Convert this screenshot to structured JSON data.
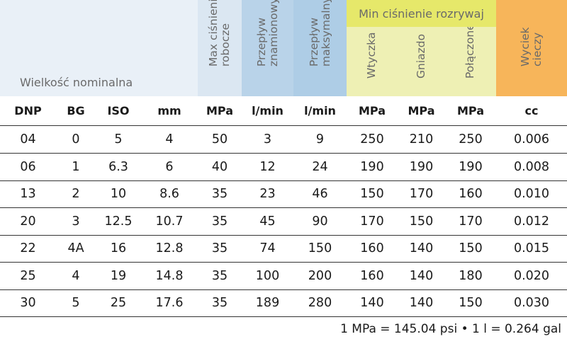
{
  "header": {
    "nominal_label": "Wielkość nominalna",
    "max_pressure": "Max ciśnienie\nrobocze",
    "rated_flow": "Przepływ\nznamionowy",
    "max_flow": "Przepływ\nmaksymalny",
    "min_burst_group": "Min ciśnienie rozrywaj",
    "plug": "Wtyczka",
    "socket": "Gniazdo",
    "connected": "Połączone",
    "leak": "Wyciek\ncieczy"
  },
  "colors": {
    "nominal_bg": "#e9f0f7",
    "max_pressure_bg": "#dbe7f2",
    "rated_flow_bg": "#b9d3e9",
    "max_flow_bg": "#aecde6",
    "burst_group_bg": "#e6e86a",
    "burst_cols_bg": "#eef0b4",
    "leak_bg": "#f7b55a"
  },
  "columns": [
    "DNP",
    "BG",
    "ISO",
    "mm",
    "MPa",
    "l/min",
    "l/min",
    "MPa",
    "MPa",
    "MPa",
    "cc"
  ],
  "rows": [
    [
      "04",
      "0",
      "5",
      "4",
      "50",
      "3",
      "9",
      "250",
      "210",
      "250",
      "0.006"
    ],
    [
      "06",
      "1",
      "6.3",
      "6",
      "40",
      "12",
      "24",
      "190",
      "190",
      "190",
      "0.008"
    ],
    [
      "13",
      "2",
      "10",
      "8.6",
      "35",
      "23",
      "46",
      "150",
      "170",
      "160",
      "0.010"
    ],
    [
      "20",
      "3",
      "12.5",
      "10.7",
      "35",
      "45",
      "90",
      "170",
      "150",
      "170",
      "0.012"
    ],
    [
      "22",
      "4A",
      "16",
      "12.8",
      "35",
      "74",
      "150",
      "160",
      "140",
      "150",
      "0.015"
    ],
    [
      "25",
      "4",
      "19",
      "14.8",
      "35",
      "100",
      "200",
      "160",
      "140",
      "180",
      "0.020"
    ],
    [
      "30",
      "5",
      "25",
      "17.6",
      "35",
      "189",
      "280",
      "140",
      "140",
      "150",
      "0.030"
    ]
  ],
  "footnote": "1 MPa = 145.04 psi • 1 l = 0.264 gal"
}
